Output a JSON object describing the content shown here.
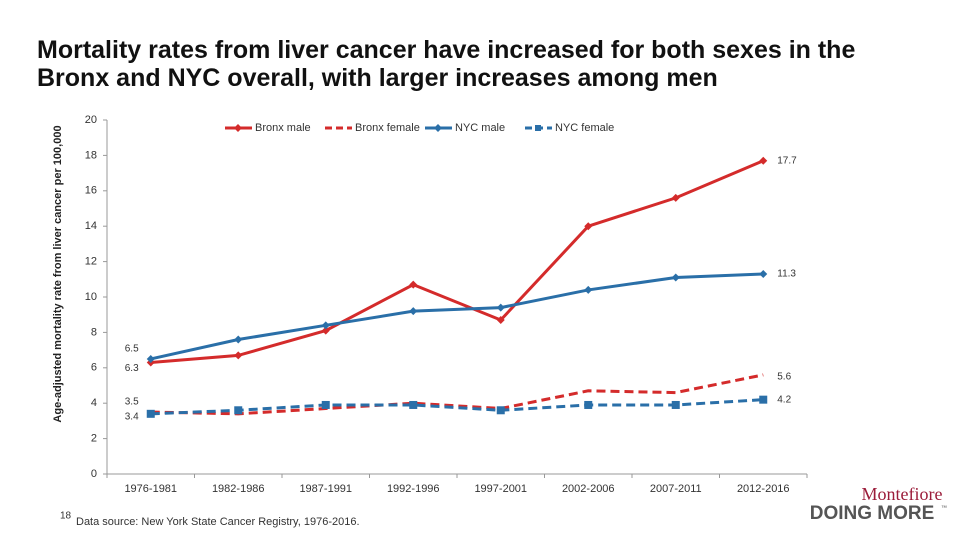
{
  "chart_data": {
    "type": "line",
    "title": "Mortality rates from liver cancer have increased for both sexes in the Bronx and NYC overall, with larger increases among men",
    "y_label": "Age-adjusted mortality rate from liver cancer per 100,000",
    "categories": [
      "1976-1981",
      "1982-1986",
      "1987-1991",
      "1992-1996",
      "1997-2001",
      "2002-2006",
      "2007-2011",
      "2012-2016"
    ],
    "series": [
      {
        "name": "Bronx male",
        "color": "#d42b2b",
        "dash": false,
        "marker": "diamond",
        "values": [
          6.3,
          6.7,
          8.1,
          10.7,
          8.7,
          14.0,
          15.6,
          17.7
        ]
      },
      {
        "name": "Bronx female",
        "color": "#d42b2b",
        "dash": true,
        "marker": "none",
        "values": [
          3.5,
          3.4,
          3.7,
          4.0,
          3.7,
          4.7,
          4.6,
          5.6
        ]
      },
      {
        "name": "NYC male",
        "color": "#2a6fa8",
        "dash": false,
        "marker": "diamond",
        "values": [
          6.5,
          7.6,
          8.4,
          9.2,
          9.4,
          10.4,
          11.1,
          11.3
        ]
      },
      {
        "name": "NYC female",
        "color": "#2a6fa8",
        "dash": true,
        "marker": "square",
        "values": [
          3.4,
          3.6,
          3.9,
          3.9,
          3.6,
          3.9,
          3.9,
          4.2
        ]
      }
    ],
    "ylim": [
      0,
      20
    ],
    "yticks": [
      0,
      2,
      4,
      6,
      8,
      10,
      12,
      14,
      16,
      18,
      20
    ],
    "grid": false,
    "legend": "top"
  },
  "slide": {
    "page_number": "18",
    "source": "Data source: New York State Cancer Registry, 1976-2016.",
    "logo": "Montefiore",
    "tagline": "DOING MORE",
    "trademark": "™"
  }
}
